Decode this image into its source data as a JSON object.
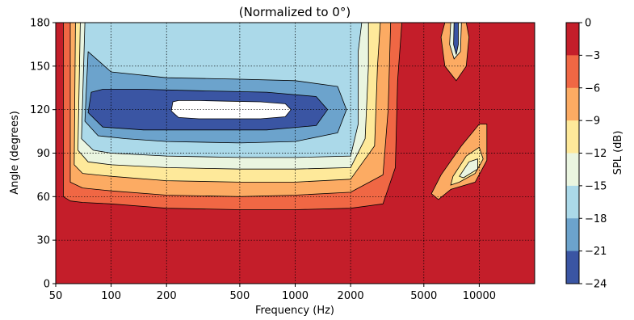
{
  "chart_data": {
    "type": "heatmap",
    "subtype": "filled-contour",
    "title": "(Normalized to 0°)",
    "xlabel": "Frequency (Hz)",
    "ylabel": "Angle (degrees)",
    "x_scale": "log",
    "xlim": [
      50,
      20000
    ],
    "ylim": [
      0,
      180
    ],
    "x_ticks": [
      50,
      100,
      200,
      500,
      1000,
      2000,
      5000,
      10000
    ],
    "x_tick_labels": [
      "50",
      "100",
      "200",
      "500",
      "1000",
      "2000",
      "5000",
      "10000"
    ],
    "y_ticks": [
      0,
      30,
      60,
      90,
      120,
      150,
      180
    ],
    "y_tick_labels": [
      "0",
      "30",
      "60",
      "90",
      "120",
      "150",
      "180"
    ],
    "grid": true,
    "colorbar": {
      "label": "SPL (dB)",
      "levels": [
        0,
        -3,
        -6,
        -9,
        -12,
        -15,
        -18,
        -21,
        -24
      ],
      "tick_labels": [
        "0",
        "−3",
        "−6",
        "−9",
        "−12",
        "−15",
        "−18",
        "−21",
        "−24"
      ],
      "colors": [
        "#c41e2a",
        "#f06744",
        "#fcab63",
        "#fee99a",
        "#eaf5e0",
        "#abd9e9",
        "#6ca3cc",
        "#3a55a3"
      ]
    },
    "contours": [
      {
        "level": -3,
        "points": [
          [
            55,
            180
          ],
          [
            55,
            60
          ],
          [
            60,
            57
          ],
          [
            70,
            56
          ],
          [
            100,
            55
          ],
          [
            200,
            52
          ],
          [
            500,
            51
          ],
          [
            1000,
            51
          ],
          [
            2000,
            52
          ],
          [
            3000,
            55
          ],
          [
            3500,
            80
          ],
          [
            3600,
            140
          ],
          [
            3800,
            180
          ]
        ]
      },
      {
        "level": -6,
        "points": [
          [
            60,
            180
          ],
          [
            60,
            70
          ],
          [
            70,
            66
          ],
          [
            100,
            64
          ],
          [
            200,
            61
          ],
          [
            500,
            60
          ],
          [
            1000,
            61
          ],
          [
            2000,
            63
          ],
          [
            3000,
            75
          ],
          [
            3200,
            120
          ],
          [
            3300,
            180
          ]
        ]
      },
      {
        "level": -9,
        "points": [
          [
            64,
            180
          ],
          [
            63,
            82
          ],
          [
            70,
            76
          ],
          [
            100,
            74
          ],
          [
            200,
            71
          ],
          [
            500,
            70
          ],
          [
            1000,
            70
          ],
          [
            2000,
            72
          ],
          [
            2700,
            95
          ],
          [
            2800,
            150
          ],
          [
            2900,
            180
          ]
        ]
      },
      {
        "level": -12,
        "points": [
          [
            68,
            180
          ],
          [
            66,
            92
          ],
          [
            75,
            84
          ],
          [
            100,
            82
          ],
          [
            200,
            80
          ],
          [
            500,
            79
          ],
          [
            1000,
            79
          ],
          [
            2000,
            80
          ],
          [
            2400,
            100
          ],
          [
            2500,
            150
          ],
          [
            2500,
            180
          ]
        ]
      },
      {
        "level": -15,
        "points": [
          [
            72,
            180
          ],
          [
            69,
            100
          ],
          [
            80,
            92
          ],
          [
            100,
            90
          ],
          [
            200,
            88
          ],
          [
            500,
            87
          ],
          [
            1000,
            87
          ],
          [
            2000,
            88
          ],
          [
            2200,
            110
          ],
          [
            2200,
            160
          ],
          [
            2300,
            180
          ]
        ]
      },
      {
        "level": -18,
        "points": [
          [
            75,
            160
          ],
          [
            72,
            112
          ],
          [
            85,
            102
          ],
          [
            120,
            100
          ],
          [
            200,
            98
          ],
          [
            500,
            97
          ],
          [
            1000,
            98
          ],
          [
            1700,
            104
          ],
          [
            1900,
            120
          ],
          [
            1700,
            136
          ],
          [
            1000,
            140
          ],
          [
            500,
            141
          ],
          [
            200,
            142
          ],
          [
            100,
            146
          ],
          [
            75,
            160
          ]
        ]
      },
      {
        "level": -21,
        "points": [
          [
            78,
            132
          ],
          [
            75,
            118
          ],
          [
            90,
            108
          ],
          [
            150,
            106
          ],
          [
            300,
            106
          ],
          [
            700,
            106
          ],
          [
            1300,
            109
          ],
          [
            1500,
            120
          ],
          [
            1300,
            129
          ],
          [
            700,
            132
          ],
          [
            300,
            133
          ],
          [
            150,
            134
          ],
          [
            90,
            134
          ],
          [
            78,
            132
          ]
        ]
      }
    ],
    "blobs": [
      {
        "level": -6,
        "points": [
          [
            7000,
            65
          ],
          [
            6000,
            58
          ],
          [
            5500,
            62
          ],
          [
            6200,
            75
          ],
          [
            8000,
            95
          ],
          [
            10000,
            110
          ],
          [
            11000,
            110
          ],
          [
            11000,
            85
          ],
          [
            9500,
            70
          ],
          [
            7000,
            65
          ]
        ]
      },
      {
        "level": -9,
        "points": [
          [
            7800,
            70
          ],
          [
            7000,
            68
          ],
          [
            7200,
            74
          ],
          [
            8500,
            88
          ],
          [
            10000,
            94
          ],
          [
            10500,
            86
          ],
          [
            9500,
            76
          ],
          [
            7800,
            70
          ]
        ]
      },
      {
        "level": -12,
        "points": [
          [
            8200,
            73
          ],
          [
            7800,
            74
          ],
          [
            8800,
            84
          ],
          [
            9800,
            86
          ],
          [
            9800,
            79
          ],
          [
            8200,
            73
          ]
        ]
      },
      {
        "level": -6,
        "points": [
          [
            6500,
            180
          ],
          [
            6200,
            170
          ],
          [
            6500,
            150
          ],
          [
            7500,
            140
          ],
          [
            8500,
            150
          ],
          [
            8800,
            170
          ],
          [
            8500,
            180
          ]
        ]
      },
      {
        "level": -12,
        "points": [
          [
            7000,
            180
          ],
          [
            6900,
            165
          ],
          [
            7300,
            155
          ],
          [
            7900,
            160
          ],
          [
            8000,
            180
          ]
        ]
      },
      {
        "level": -21,
        "points": [
          [
            7300,
            180
          ],
          [
            7250,
            165
          ],
          [
            7500,
            158
          ],
          [
            7700,
            165
          ],
          [
            7700,
            180
          ]
        ]
      }
    ]
  }
}
